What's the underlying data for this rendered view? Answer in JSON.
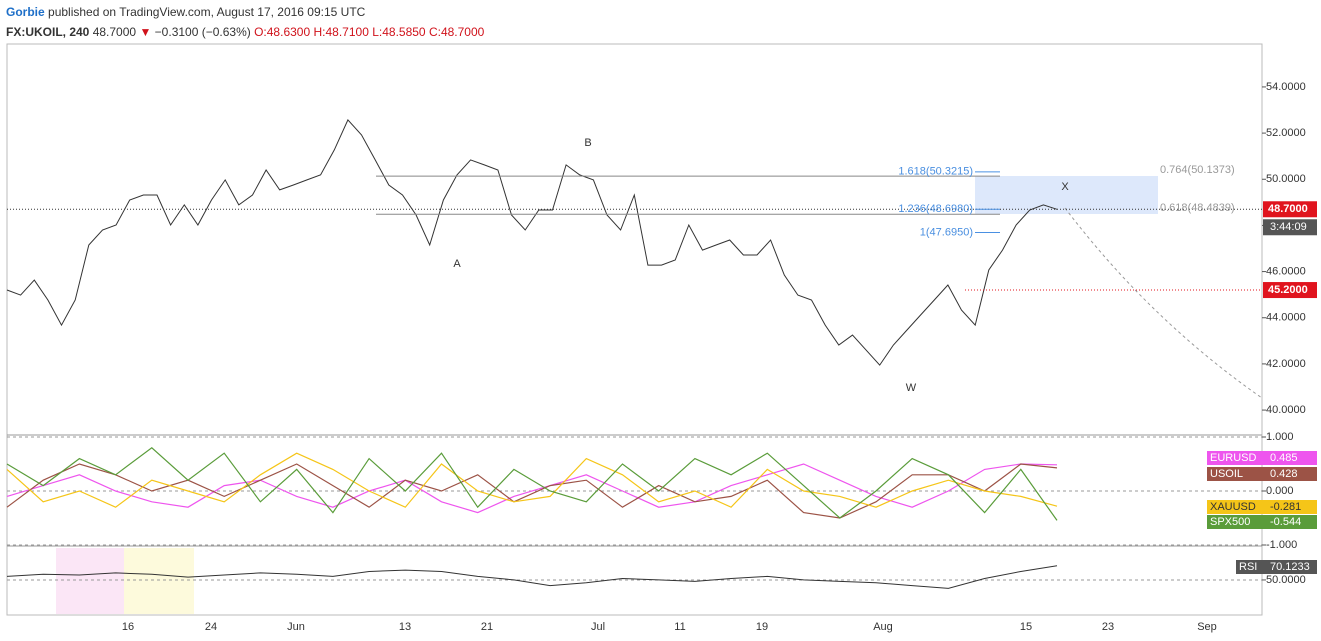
{
  "header": {
    "author": "Gorbie",
    "published": "published on TradingView.com, August 17, 2016 09:15 UTC",
    "symbol": "FX:UKOIL, 240",
    "last": "48.7000",
    "change": "−0.3100 (−0.63%)",
    "open": "O:48.6300",
    "high": "H:48.7100",
    "low": "L:48.5850",
    "close": "C:48.7000"
  },
  "chart_data": [
    {
      "type": "line",
      "color": "#333333",
      "values": [
        45.2,
        44.98,
        45.63,
        44.77,
        43.68,
        44.77,
        47.15,
        47.8,
        48.02,
        49.1,
        49.32,
        49.32,
        48.02,
        48.89,
        48.02,
        49.1,
        49.97,
        48.89,
        49.32,
        50.4,
        49.54,
        49.75,
        49.97,
        50.19,
        51.27,
        52.57,
        51.92,
        50.84,
        49.75,
        49.32,
        48.45,
        47.15,
        49.1,
        50.19,
        50.84,
        50.62,
        50.4,
        48.45,
        47.8,
        48.67,
        48.67,
        50.62,
        50.19,
        49.97,
        48.45,
        47.8,
        49.32,
        46.28,
        46.28,
        46.5,
        48.02,
        46.93,
        47.15,
        47.37,
        46.72,
        46.72,
        47.37,
        45.85,
        44.98,
        44.77,
        43.68,
        42.82,
        43.25,
        42.6,
        41.95,
        42.82,
        43.47,
        44.12,
        44.77,
        45.42,
        44.33,
        43.68,
        46.07,
        46.93,
        48.02,
        48.67,
        48.89,
        48.7
      ],
      "ylim": [
        38.92,
        55.86
      ],
      "yticks": [
        {
          "value": 40,
          "label": "40.0000"
        },
        {
          "value": 42,
          "label": "42.0000"
        },
        {
          "value": 44,
          "label": "44.0000"
        },
        {
          "value": 46,
          "label": "46.0000"
        },
        {
          "value": 48,
          "label": "48.0000"
        },
        {
          "value": 50,
          "label": "50.0000"
        },
        {
          "value": 52,
          "label": "52.0000"
        },
        {
          "value": 54,
          "label": "54.0000"
        }
      ],
      "xtick_labels": [
        "16",
        "24",
        "Jun",
        "13",
        "21",
        "Jul",
        "11",
        "19",
        "Aug",
        "15",
        "23",
        "Sep"
      ],
      "price_labels": [
        {
          "value": 48.7,
          "label": "48.7000",
          "color": "#e0141e"
        },
        {
          "value": 45.2,
          "label": "45.2000",
          "color": "#e0141e"
        }
      ],
      "countdown": "3:44:09",
      "fib_levels": [
        {
          "value": 50.3215,
          "label": "1.618(50.3215)"
        },
        {
          "value": 48.698,
          "label": "1.236(48.6980)"
        },
        {
          "value": 47.695,
          "label": "1(47.6950)"
        }
      ],
      "retracements": [
        {
          "value": 50.1373,
          "label": "0.764(50.1373)"
        },
        {
          "value": 48.4839,
          "label": "0.618(48.4839)"
        }
      ],
      "wave_labels": [
        "A",
        "B",
        "W",
        "X"
      ]
    },
    {
      "type": "line",
      "ylim": [
        -1.0,
        1.0
      ],
      "yticks": [
        {
          "value": 1,
          "label": "1.000"
        },
        {
          "value": 0,
          "label": "0.000"
        },
        {
          "value": -1,
          "label": "-1.000"
        }
      ],
      "series": [
        {
          "name": "EURUSD",
          "color": "#ee55ee",
          "values": [
            -0.1,
            0.1,
            0.3,
            0.0,
            -0.2,
            -0.3,
            0.1,
            0.2,
            -0.1,
            -0.3,
            0.0,
            0.2,
            -0.2,
            -0.4,
            -0.1,
            0.1,
            0.3,
            0.0,
            -0.3,
            -0.2,
            0.1,
            0.3,
            0.5,
            0.2,
            -0.1,
            -0.3,
            0.0,
            0.4,
            0.5,
            0.485
          ]
        },
        {
          "name": "USOIL",
          "color": "#9c5346",
          "values": [
            -0.3,
            0.2,
            0.5,
            0.3,
            0.0,
            0.2,
            -0.1,
            0.2,
            0.5,
            0.1,
            -0.3,
            0.2,
            0.0,
            0.3,
            -0.2,
            0.1,
            0.2,
            -0.3,
            0.1,
            -0.2,
            -0.1,
            0.2,
            -0.4,
            -0.5,
            -0.2,
            0.3,
            0.3,
            0.0,
            0.5,
            0.428
          ]
        },
        {
          "name": "XAUUSD",
          "color": "#f5c518",
          "values": [
            0.4,
            -0.2,
            0.0,
            -0.3,
            0.2,
            0.0,
            -0.2,
            0.3,
            0.7,
            0.4,
            0.0,
            -0.3,
            0.5,
            0.0,
            -0.2,
            -0.1,
            0.6,
            0.3,
            -0.2,
            0.0,
            -0.3,
            0.4,
            0.0,
            -0.1,
            -0.3,
            0.0,
            0.2,
            0.0,
            -0.1,
            -0.281
          ]
        },
        {
          "name": "SPX500",
          "color": "#5a9c3a",
          "values": [
            0.5,
            0.1,
            0.6,
            0.3,
            0.8,
            0.2,
            0.7,
            -0.2,
            0.4,
            -0.4,
            0.6,
            0.0,
            0.7,
            -0.3,
            0.4,
            0.0,
            -0.2,
            0.5,
            0.0,
            0.6,
            0.3,
            0.7,
            0.1,
            -0.5,
            0.0,
            0.6,
            0.3,
            -0.4,
            0.4,
            -0.544
          ]
        }
      ]
    },
    {
      "type": "line",
      "name": "RSI",
      "color": "#333333",
      "ylim": [
        0,
        97
      ],
      "yticks": [
        {
          "value": 50,
          "label": "50.0000"
        }
      ],
      "values": [
        55,
        58,
        57,
        60,
        58,
        54,
        57,
        60,
        58,
        55,
        62,
        64,
        62,
        55,
        50,
        42,
        46,
        52,
        50,
        48,
        52,
        55,
        50,
        48,
        46,
        42,
        38,
        52,
        62,
        70.1233
      ]
    }
  ]
}
